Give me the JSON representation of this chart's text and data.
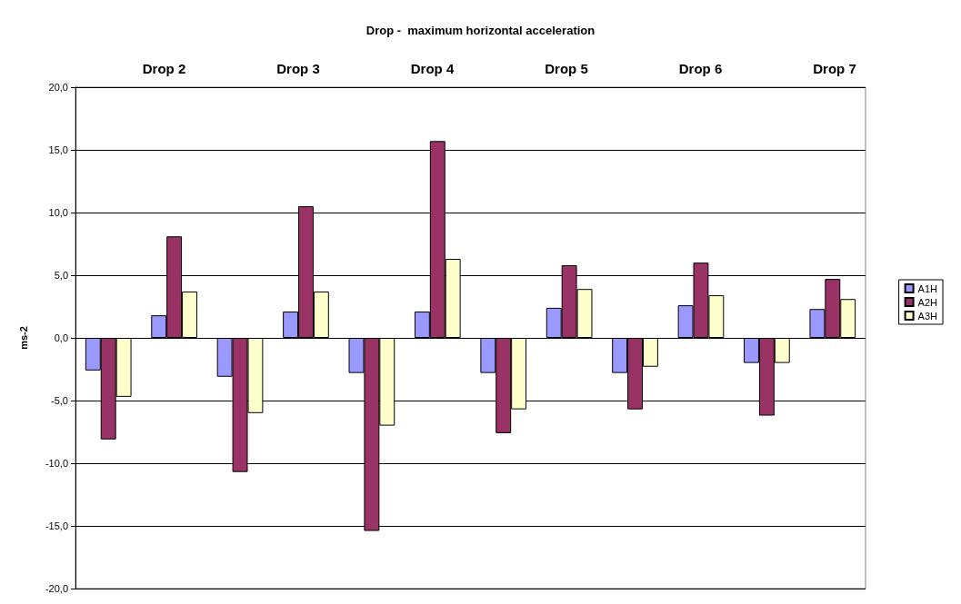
{
  "chart_data": {
    "type": "bar",
    "title": "Drop -  maximum horizontal acceleration",
    "ylabel": "ms-2",
    "categories": [
      null,
      null,
      null,
      null,
      null,
      null,
      null,
      null,
      null,
      null,
      null,
      null
    ],
    "annotations": [
      "Drop 2",
      "Drop 3",
      "Drop 4",
      "Drop 5",
      "Drop 6",
      "Drop 7"
    ],
    "series": [
      {
        "name": "A1H",
        "color": "#9999ff",
        "values": [
          -2.6,
          1.8,
          -3.1,
          2.1,
          -2.8,
          2.1,
          -2.8,
          2.4,
          -2.8,
          2.6,
          -2.0,
          2.3
        ]
      },
      {
        "name": "A2H",
        "color": "#993366",
        "values": [
          -8.1,
          8.1,
          -10.7,
          10.5,
          -15.4,
          15.7,
          -7.6,
          5.8,
          -5.7,
          6.0,
          -6.2,
          4.7
        ]
      },
      {
        "name": "A3H",
        "color": "#ffffcc",
        "values": [
          -4.7,
          3.7,
          -6.0,
          3.7,
          -7.0,
          6.3,
          -5.7,
          3.9,
          -2.3,
          3.4,
          -2.0,
          3.1
        ]
      }
    ],
    "ylim": [
      -20,
      20
    ],
    "yticks": [
      {
        "value": -20,
        "label": "-20,0"
      },
      {
        "value": -15,
        "label": "-15,0"
      },
      {
        "value": -10,
        "label": "-10,0"
      },
      {
        "value": -5,
        "label": "-5,0"
      },
      {
        "value": 0,
        "label": "0,0"
      },
      {
        "value": 5,
        "label": "5,0"
      },
      {
        "value": 10,
        "label": "10,0"
      },
      {
        "value": 15,
        "label": "15,0"
      },
      {
        "value": 20,
        "label": "20,0"
      }
    ],
    "grid": "y",
    "legend": "right",
    "tick_labels": "y"
  }
}
